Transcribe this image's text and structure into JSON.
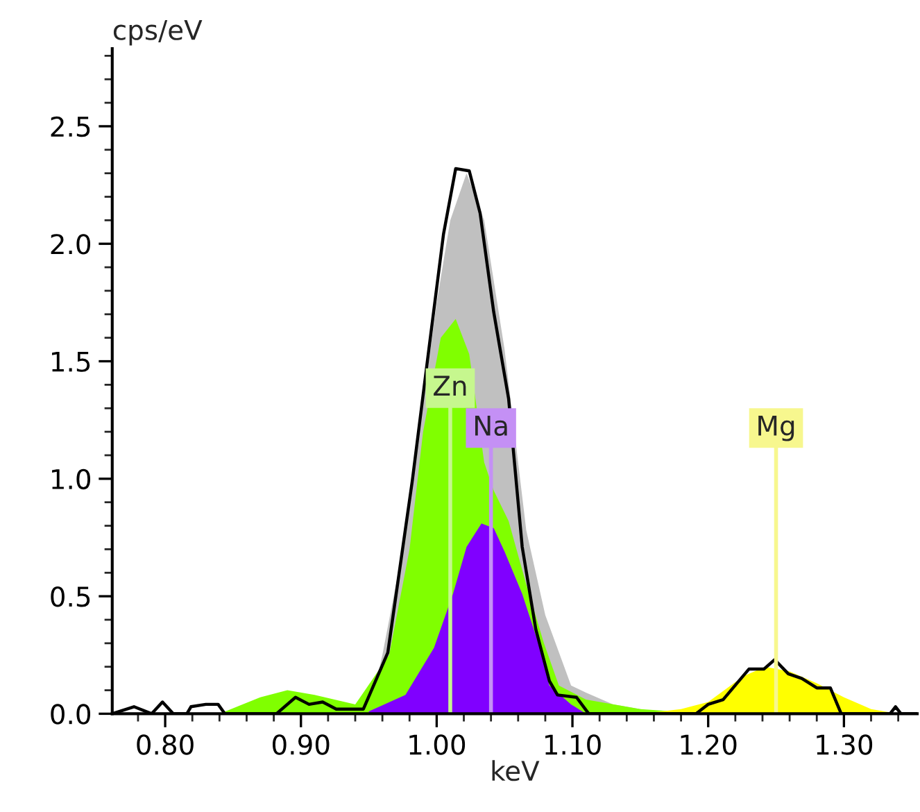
{
  "chart_data": {
    "type": "area",
    "xlabel": "keV",
    "ylabel": "cps/eV",
    "xlim": [
      0.761,
      1.354
    ],
    "ylim": [
      0,
      2.83
    ],
    "xticks": [
      {
        "value": 0.8,
        "label": "0.80"
      },
      {
        "value": 0.9,
        "label": "0.90"
      },
      {
        "value": 1.0,
        "label": "1.00"
      },
      {
        "value": 1.1,
        "label": "1.10"
      },
      {
        "value": 1.2,
        "label": "1.20"
      },
      {
        "value": 1.3,
        "label": "1.30"
      }
    ],
    "yticks": [
      {
        "value": 0,
        "label": "0.0"
      },
      {
        "value": 0.5,
        "label": "0.5"
      },
      {
        "value": 1.0,
        "label": "1.0"
      },
      {
        "value": 1.5,
        "label": "1.5"
      },
      {
        "value": 2.0,
        "label": "2.0"
      },
      {
        "value": 2.5,
        "label": "2.5"
      }
    ],
    "grid": false,
    "legend": false,
    "series": [
      {
        "color": "#c0c0c0",
        "x": [
          0.95,
          0.96,
          0.975,
          0.985,
          1.0,
          1.01,
          1.022,
          1.035,
          1.05,
          1.066,
          1.08,
          1.099,
          1.11,
          1.13,
          1.15,
          1.17
        ],
        "values": [
          0.0,
          0.25,
          0.7,
          1.1,
          1.75,
          2.1,
          2.3,
          2.1,
          1.55,
          0.78,
          0.42,
          0.12,
          0.09,
          0.04,
          0.02,
          0.0
        ]
      },
      {
        "color": "#80ff00",
        "x": [
          0.84,
          0.87,
          0.89,
          0.91,
          0.94,
          0.946,
          0.965,
          0.98,
          0.99,
          1.003,
          1.014,
          1.024,
          1.035,
          1.042,
          1.053,
          1.066,
          1.079,
          1.09,
          1.11,
          1.15,
          1.2
        ],
        "values": [
          0.0,
          0.07,
          0.1,
          0.08,
          0.04,
          0.09,
          0.25,
          0.7,
          1.2,
          1.6,
          1.68,
          1.53,
          1.07,
          0.95,
          0.82,
          0.55,
          0.3,
          0.12,
          0.06,
          0.02,
          0.0
        ]
      },
      {
        "color": "#8000ff",
        "x": [
          0.95,
          0.977,
          0.998,
          1.012,
          1.022,
          1.033,
          1.042,
          1.05,
          1.063,
          1.076,
          1.083,
          1.099,
          1.11
        ],
        "values": [
          0.01,
          0.08,
          0.28,
          0.51,
          0.71,
          0.81,
          0.79,
          0.69,
          0.51,
          0.28,
          0.12,
          0.04,
          0.0
        ]
      },
      {
        "color": "#ffff00",
        "x": [
          1.15,
          1.18,
          1.2,
          1.226,
          1.242,
          1.26,
          1.28,
          1.3,
          1.32,
          1.34
        ],
        "values": [
          0.0,
          0.02,
          0.05,
          0.16,
          0.2,
          0.18,
          0.13,
          0.07,
          0.02,
          0.0
        ]
      },
      {
        "type": "line",
        "color": "#000000",
        "x": [
          0.761,
          0.777,
          0.79,
          0.798,
          0.806,
          0.816,
          0.819,
          0.83,
          0.839,
          0.844,
          0.882,
          0.896,
          0.906,
          0.916,
          0.926,
          0.946,
          0.964,
          0.982,
          0.994,
          1.005,
          1.014,
          1.024,
          1.032,
          1.042,
          1.053,
          1.063,
          1.073,
          1.083,
          1.089,
          1.103,
          1.112,
          1.191,
          1.2,
          1.211,
          1.23,
          1.241,
          1.249,
          1.259,
          1.269,
          1.28,
          1.29,
          1.298,
          1.334,
          1.338,
          1.342,
          1.354
        ],
        "values": [
          0.0,
          0.03,
          0.0,
          0.05,
          0.0,
          0.0,
          0.03,
          0.04,
          0.04,
          0.0,
          0.0,
          0.07,
          0.04,
          0.05,
          0.02,
          0.02,
          0.26,
          0.99,
          1.54,
          2.04,
          2.32,
          2.31,
          2.13,
          1.71,
          1.34,
          0.71,
          0.36,
          0.14,
          0.08,
          0.07,
          0.0,
          0.0,
          0.04,
          0.06,
          0.19,
          0.19,
          0.23,
          0.17,
          0.15,
          0.11,
          0.11,
          0.0,
          0.0,
          0.03,
          0.0,
          0.0
        ]
      }
    ],
    "ref_lines": [
      {
        "axis": "x",
        "value": 1.01,
        "label": "Zn",
        "color": "#c6f78e"
      },
      {
        "axis": "x",
        "value": 1.04,
        "label": "Na",
        "color": "#c490f5"
      },
      {
        "axis": "x",
        "value": 1.25,
        "label": "Mg",
        "color": "#f7f78e"
      }
    ]
  }
}
